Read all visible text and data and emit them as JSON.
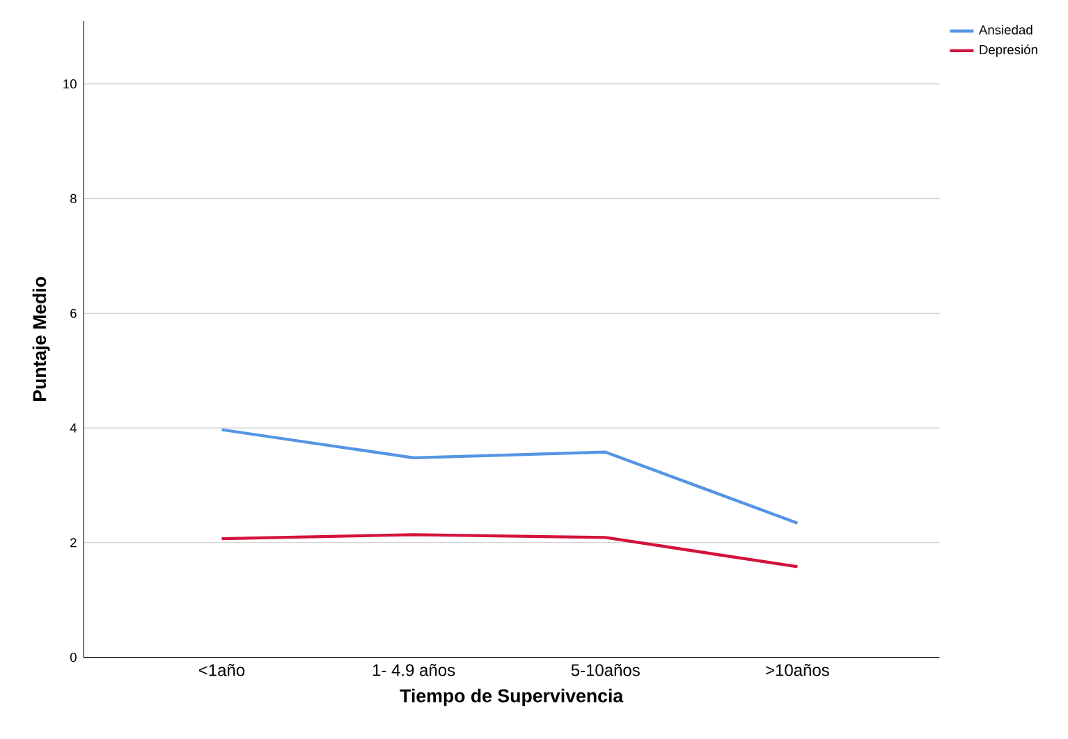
{
  "chart_data": {
    "type": "line",
    "xlabel": "Tiempo de Supervivencia",
    "ylabel": "Puntaje Medio",
    "categories": [
      "<1año",
      "1- 4.9 años",
      "5-10años",
      ">10años"
    ],
    "series": [
      {
        "name": "Ansiedad",
        "color": "#5595e3",
        "values": [
          3.97,
          3.48,
          3.58,
          2.34
        ]
      },
      {
        "name": "Depresión",
        "color": "#d4123c",
        "values": [
          2.07,
          2.14,
          2.09,
          1.58
        ]
      }
    ],
    "ylim": [
      0,
      11.1
    ],
    "yticks": [
      0,
      2,
      4,
      6,
      8,
      10
    ],
    "grid": "y",
    "legend": "top right",
    "marker": "none",
    "line_style": "solid"
  }
}
